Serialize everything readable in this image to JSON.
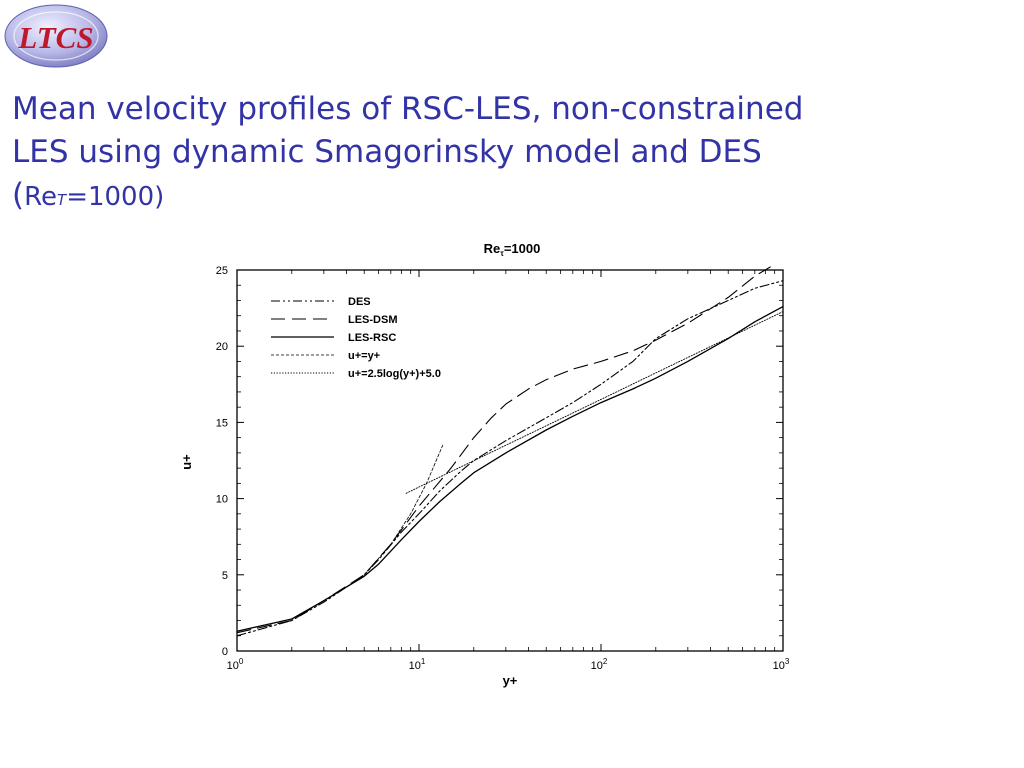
{
  "logo": {
    "text": "LTCS"
  },
  "slide": {
    "title_line1": "Mean velocity profiles of RSC-LES, non-constrained",
    "title_line2": "LES using dynamic Smagorinsky model and DES",
    "title_line3_open": "(",
    "title_line3_re": "Re",
    "title_line3_sub": "T",
    "title_line3_rest": "=1000)"
  },
  "colors": {
    "title": "#3333a8",
    "logo_red": "#c0182b",
    "logo_blue": "#8080c8",
    "lines": "#000000"
  },
  "chart_data": {
    "type": "line",
    "title": "Re",
    "title_subscript": "τ",
    "title_suffix": "=1000",
    "xlabel": "y+",
    "ylabel": "u+",
    "x_scale": "log",
    "xlim": [
      1,
      1000
    ],
    "ylim": [
      0,
      25
    ],
    "x_ticks": [
      {
        "value": 1,
        "base": "10",
        "exp": "0"
      },
      {
        "value": 10,
        "base": "10",
        "exp": "1"
      },
      {
        "value": 100,
        "base": "10",
        "exp": "2"
      },
      {
        "value": 1000,
        "base": "10",
        "exp": "3"
      }
    ],
    "y_ticks": [
      0,
      5,
      10,
      15,
      20,
      25
    ],
    "legend_position": "top-left",
    "series": [
      {
        "name": "DES",
        "dash": "dash-dot-dot",
        "points": [
          [
            1,
            1.0
          ],
          [
            2,
            2.0
          ],
          [
            3,
            3.2
          ],
          [
            4,
            4.2
          ],
          [
            5,
            5.0
          ],
          [
            6,
            6.0
          ],
          [
            8,
            7.8
          ],
          [
            10,
            9.0
          ],
          [
            13,
            10.5
          ],
          [
            17,
            11.8
          ],
          [
            20,
            12.5
          ],
          [
            30,
            13.8
          ],
          [
            50,
            15.3
          ],
          [
            70,
            16.3
          ],
          [
            100,
            17.5
          ],
          [
            150,
            19.0
          ],
          [
            200,
            20.5
          ],
          [
            300,
            21.8
          ],
          [
            500,
            23.0
          ],
          [
            700,
            23.8
          ],
          [
            1000,
            24.3
          ]
        ]
      },
      {
        "name": "LES-DSM",
        "dash": "long-dash",
        "points": [
          [
            1,
            1.2
          ],
          [
            2,
            2.0
          ],
          [
            3,
            3.3
          ],
          [
            5,
            5.0
          ],
          [
            7,
            7.0
          ],
          [
            10,
            9.5
          ],
          [
            15,
            12.0
          ],
          [
            20,
            14.0
          ],
          [
            25,
            15.3
          ],
          [
            30,
            16.2
          ],
          [
            40,
            17.2
          ],
          [
            50,
            17.8
          ],
          [
            70,
            18.5
          ],
          [
            100,
            19.0
          ],
          [
            150,
            19.7
          ],
          [
            200,
            20.4
          ],
          [
            300,
            21.5
          ],
          [
            500,
            23.2
          ],
          [
            700,
            24.6
          ],
          [
            850,
            25.2
          ]
        ]
      },
      {
        "name": "LES-RSC",
        "dash": "solid",
        "points": [
          [
            1,
            1.3
          ],
          [
            2,
            2.1
          ],
          [
            3,
            3.3
          ],
          [
            5,
            4.9
          ],
          [
            6,
            5.7
          ],
          [
            8,
            7.3
          ],
          [
            10,
            8.5
          ],
          [
            13,
            9.8
          ],
          [
            17,
            11.0
          ],
          [
            20,
            11.7
          ],
          [
            30,
            13.0
          ],
          [
            50,
            14.5
          ],
          [
            70,
            15.4
          ],
          [
            100,
            16.3
          ],
          [
            150,
            17.2
          ],
          [
            200,
            17.9
          ],
          [
            300,
            19.0
          ],
          [
            500,
            20.5
          ],
          [
            700,
            21.6
          ],
          [
            1000,
            22.6
          ]
        ]
      },
      {
        "name": "u+=y+",
        "dash": "short-dash",
        "points": [
          [
            5,
            5
          ],
          [
            7,
            7
          ],
          [
            9,
            9
          ],
          [
            11,
            11
          ],
          [
            13.5,
            13.5
          ]
        ]
      },
      {
        "name": "u+=2.5log(y+)+5.0",
        "dash": "dotted",
        "points": [
          [
            8.5,
            10.35
          ],
          [
            10,
            10.76
          ],
          [
            20,
            12.49
          ],
          [
            50,
            14.78
          ],
          [
            100,
            16.51
          ],
          [
            200,
            18.25
          ],
          [
            500,
            20.54
          ],
          [
            1000,
            22.27
          ]
        ]
      }
    ]
  }
}
